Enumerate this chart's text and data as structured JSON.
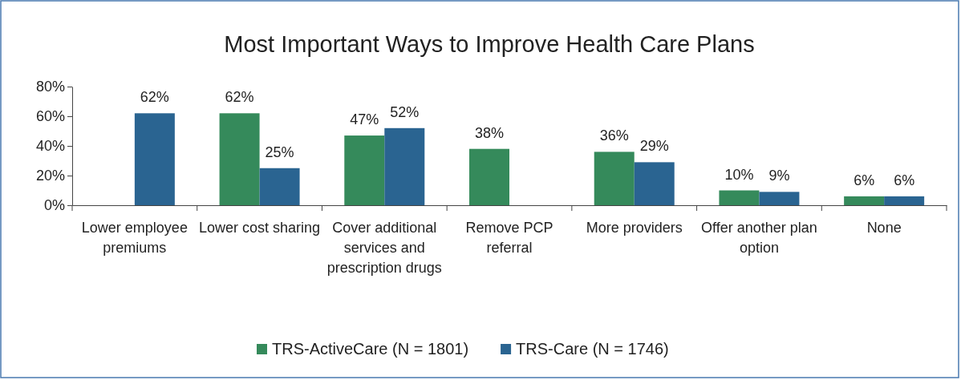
{
  "chart_data": {
    "type": "bar",
    "title": "Most Important Ways to Improve Health Care Plans",
    "categories": [
      "Lower employee premiums",
      "Lower cost sharing",
      "Cover additional services and prescription drugs",
      "Remove PCP referral",
      "More providers",
      "Offer another plan option",
      "None"
    ],
    "series": [
      {
        "name": "TRS-ActiveCare (N = 1801)",
        "color": "#358a5b",
        "values": [
          null,
          62,
          47,
          38,
          36,
          10,
          6
        ],
        "value_labels": [
          null,
          "62%",
          "47%",
          "38%",
          "36%",
          "10%",
          "6%"
        ]
      },
      {
        "name": "TRS-Care (N = 1746)",
        "color": "#2a6491",
        "values": [
          62,
          25,
          52,
          null,
          29,
          9,
          6
        ],
        "value_labels": [
          "62%",
          "25%",
          "52%",
          null,
          "29%",
          "9%",
          "6%"
        ]
      }
    ],
    "ylim": [
      0,
      80
    ],
    "yticks": [
      {
        "value": 0,
        "label": "0%"
      },
      {
        "value": 20,
        "label": "20%"
      },
      {
        "value": 40,
        "label": "40%"
      },
      {
        "value": 60,
        "label": "60%"
      },
      {
        "value": 80,
        "label": "80%"
      }
    ],
    "grid": false,
    "legend": "bottom"
  }
}
